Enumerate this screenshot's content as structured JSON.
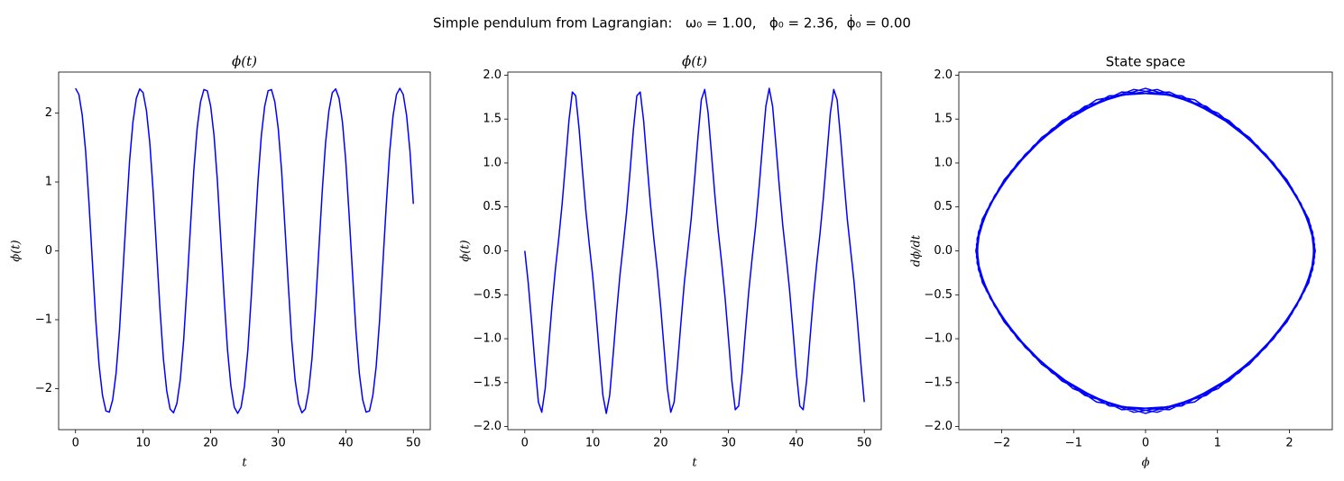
{
  "title": "Simple pendulum from Lagrangian:   ω₀ = 1.00,   ϕ₀ = 2.36,  ϕ̇₀ = 0.00",
  "chart_data": [
    {
      "type": "line",
      "title": "ϕ(t)",
      "xlabel": "t",
      "ylabel": "ϕ(t)",
      "xlim": [
        -2.5,
        52.5
      ],
      "ylim": [
        -2.596,
        2.596
      ],
      "xticks": [
        0,
        10,
        20,
        30,
        40,
        50
      ],
      "yticks": [
        {
          "value": -2,
          "label": "−2"
        },
        {
          "value": -1,
          "label": "−1"
        },
        0,
        1,
        2
      ],
      "x": [
        0,
        0.5,
        1,
        1.5,
        2,
        2.5,
        3,
        3.5,
        4,
        4.5,
        5,
        5.5,
        6,
        6.5,
        7,
        7.5,
        8,
        8.5,
        9,
        9.5,
        10,
        10.5,
        11,
        11.5,
        12,
        12.5,
        13,
        13.5,
        14,
        14.5,
        15,
        15.5,
        16,
        16.5,
        17,
        17.5,
        18,
        18.5,
        19,
        19.5,
        20,
        20.5,
        21,
        21.5,
        22,
        22.5,
        23,
        23.5,
        24,
        24.5,
        25,
        25.5,
        26,
        26.5,
        27,
        27.5,
        28,
        28.5,
        29,
        29.5,
        30,
        30.5,
        31,
        31.5,
        32,
        32.5,
        33,
        33.5,
        34,
        34.5,
        35,
        35.5,
        36,
        36.5,
        37,
        37.5,
        38,
        38.5,
        39,
        39.5,
        40,
        40.5,
        41,
        41.5,
        42,
        42.5,
        43,
        43.5,
        44,
        44.5,
        45,
        45.5,
        46,
        46.5,
        47,
        47.5,
        48,
        48.5,
        49,
        49.5,
        50
      ],
      "series": [
        {
          "color": "#0000ff",
          "values": [
            2.36,
            2.27,
            1.965,
            1.445,
            0.683,
            -0.163,
            -1.009,
            -1.675,
            -2.101,
            -2.324,
            -2.342,
            -2.162,
            -1.779,
            -1.161,
            -0.332,
            0.507,
            1.303,
            1.872,
            2.216,
            2.351,
            2.297,
            2.033,
            1.56,
            0.846,
            0,
            -0.846,
            -1.56,
            -2.033,
            -2.297,
            -2.351,
            -2.216,
            -1.872,
            -1.303,
            -0.507,
            0.332,
            1.161,
            1.779,
            2.162,
            2.342,
            2.324,
            2.101,
            1.675,
            1.009,
            0.163,
            -0.683,
            -1.445,
            -1.965,
            -2.27,
            -2.36,
            -2.27,
            -1.965,
            -1.445,
            -0.683,
            0.163,
            1.009,
            1.675,
            2.101,
            2.324,
            2.342,
            2.162,
            1.779,
            1.161,
            0.332,
            -0.507,
            -1.303,
            -1.872,
            -2.216,
            -2.351,
            -2.297,
            -2.033,
            -1.56,
            -0.846,
            0,
            0.846,
            1.56,
            2.033,
            2.297,
            2.351,
            2.216,
            1.872,
            1.303,
            0.507,
            -0.332,
            -1.161,
            -1.779,
            -2.162,
            -2.342,
            -2.324,
            -2.101,
            -1.675,
            -1.009,
            -0.163,
            0.683,
            1.445,
            1.965,
            2.27,
            2.36,
            2.27,
            1.965,
            1.445,
            0.683
          ]
        }
      ]
    },
    {
      "type": "line",
      "title": "ϕ̇(t)",
      "xlabel": "t",
      "ylabel": "ϕ(t)",
      "xlim": [
        -2.5,
        52.5
      ],
      "ylim": [
        -2.035,
        2.035
      ],
      "xticks": [
        0,
        10,
        20,
        30,
        40,
        50
      ],
      "yticks": [
        {
          "value": -2,
          "label": "−2.0"
        },
        {
          "value": -1.5,
          "label": "−1.5"
        },
        {
          "value": -1,
          "label": "−1.0"
        },
        {
          "value": -0.5,
          "label": "−0.5"
        },
        {
          "value": 0,
          "label": "0.0"
        },
        0.5,
        {
          "value": 1,
          "label": "1.0"
        },
        1.5,
        {
          "value": 2,
          "label": "2.0"
        }
      ],
      "x": [
        0,
        0.5,
        1,
        1.5,
        2,
        2.5,
        3,
        3.5,
        4,
        4.5,
        5,
        5.5,
        6,
        6.5,
        7,
        7.5,
        8,
        8.5,
        9,
        9.5,
        10,
        10.5,
        11,
        11.5,
        12,
        12.5,
        13,
        13.5,
        14,
        14.5,
        15,
        15.5,
        16,
        16.5,
        17,
        17.5,
        18,
        18.5,
        19,
        19.5,
        20,
        20.5,
        21,
        21.5,
        22,
        22.5,
        23,
        23.5,
        24,
        24.5,
        25,
        25.5,
        26,
        26.5,
        27,
        27.5,
        28,
        28.5,
        29,
        29.5,
        30,
        30.5,
        31,
        31.5,
        32,
        32.5,
        33,
        33.5,
        34,
        34.5,
        35,
        35.5,
        36,
        36.5,
        37,
        37.5,
        38,
        38.5,
        39,
        39.5,
        40,
        40.5,
        41,
        41.5,
        42,
        42.5,
        43,
        43.5,
        44,
        44.5,
        45,
        45.5,
        46,
        46.5,
        47,
        47.5,
        48,
        48.5,
        49,
        49.5,
        50
      ],
      "series": [
        {
          "color": "#0000ff",
          "values": [
            0,
            -0.36,
            -0.81,
            -1.29,
            -1.72,
            -1.837,
            -1.568,
            -1.098,
            -0.626,
            -0.213,
            0.141,
            0.536,
            1.002,
            1.482,
            1.808,
            1.764,
            1.386,
            0.906,
            0.448,
            0.07,
            -0.286,
            -0.718,
            -1.194,
            -1.644,
            -1.85,
            -1.644,
            -1.194,
            -0.718,
            -0.286,
            0.07,
            0.448,
            0.906,
            1.386,
            1.764,
            1.808,
            1.482,
            1.002,
            0.536,
            0.141,
            -0.213,
            -0.626,
            -1.098,
            -1.568,
            -1.837,
            -1.72,
            -1.29,
            -0.81,
            -0.36,
            0,
            0.36,
            0.81,
            1.29,
            1.72,
            1.837,
            1.568,
            1.098,
            0.626,
            0.213,
            -0.141,
            -0.536,
            -1.002,
            -1.482,
            -1.808,
            -1.764,
            -1.386,
            -0.906,
            -0.448,
            -0.07,
            0.286,
            0.718,
            1.194,
            1.644,
            1.85,
            1.644,
            1.194,
            0.718,
            0.286,
            -0.07,
            -0.448,
            -0.906,
            -1.386,
            -1.764,
            -1.808,
            -1.482,
            -1.002,
            -0.536,
            -0.141,
            0.213,
            0.626,
            1.098,
            1.568,
            1.837,
            1.72,
            1.29,
            0.81,
            0.36,
            0,
            -0.36,
            -0.81,
            -1.29,
            -1.72
          ]
        }
      ]
    },
    {
      "type": "line",
      "title": "State space",
      "xlabel": "ϕ",
      "ylabel": "dϕ/dt",
      "xlim": [
        -2.596,
        2.596
      ],
      "ylim": [
        -2.035,
        2.035
      ],
      "xticks": [
        {
          "value": -2,
          "label": "−2"
        },
        {
          "value": -1,
          "label": "−1"
        },
        0,
        1,
        2
      ],
      "yticks": [
        {
          "value": -2,
          "label": "−2.0"
        },
        {
          "value": -1.5,
          "label": "−1.5"
        },
        {
          "value": -1,
          "label": "−1.0"
        },
        {
          "value": -0.5,
          "label": "−0.5"
        },
        {
          "value": 0,
          "label": "0.0"
        },
        0.5,
        {
          "value": 1,
          "label": "1.0"
        },
        1.5,
        {
          "value": 2,
          "label": "2.0"
        }
      ],
      "x": [
        2.36,
        2.27,
        1.965,
        1.445,
        0.683,
        -0.163,
        -1.009,
        -1.675,
        -2.101,
        -2.324,
        -2.342,
        -2.162,
        -1.779,
        -1.161,
        -0.332,
        0.507,
        1.303,
        1.872,
        2.216,
        2.351,
        2.297,
        2.033,
        1.56,
        0.846,
        0,
        -0.846,
        -1.56,
        -2.033,
        -2.297,
        -2.351,
        -2.216,
        -1.872,
        -1.303,
        -0.507,
        0.332,
        1.161,
        1.779,
        2.162,
        2.342,
        2.324,
        2.101,
        1.675,
        1.009,
        0.163,
        -0.683,
        -1.445,
        -1.965,
        -2.27,
        -2.36,
        -2.27,
        -1.965,
        -1.445,
        -0.683,
        0.163,
        1.009,
        1.675,
        2.101,
        2.324,
        2.342,
        2.162,
        1.779,
        1.161,
        0.332,
        -0.507,
        -1.303,
        -1.872,
        -2.216,
        -2.351,
        -2.297,
        -2.033,
        -1.56,
        -0.846,
        0,
        0.846,
        1.56,
        2.033,
        2.297,
        2.351,
        2.216,
        1.872,
        1.303,
        0.507,
        -0.332,
        -1.161,
        -1.779,
        -2.162,
        -2.342,
        -2.324,
        -2.101,
        -1.675,
        -1.009,
        -0.163,
        0.683,
        1.445,
        1.965,
        2.27,
        2.36,
        2.27,
        1.965,
        1.445,
        0.683
      ],
      "series": [
        {
          "color": "#0000ff",
          "values": [
            0,
            -0.36,
            -0.81,
            -1.29,
            -1.72,
            -1.837,
            -1.568,
            -1.098,
            -0.626,
            -0.213,
            0.141,
            0.536,
            1.002,
            1.482,
            1.808,
            1.764,
            1.386,
            0.906,
            0.448,
            0.07,
            -0.286,
            -0.718,
            -1.194,
            -1.644,
            -1.85,
            -1.644,
            -1.194,
            -0.718,
            -0.286,
            0.07,
            0.448,
            0.906,
            1.386,
            1.764,
            1.808,
            1.482,
            1.002,
            0.536,
            0.141,
            -0.213,
            -0.626,
            -1.098,
            -1.568,
            -1.837,
            -1.72,
            -1.29,
            -0.81,
            -0.36,
            0,
            0.36,
            0.81,
            1.29,
            1.72,
            1.837,
            1.568,
            1.098,
            0.626,
            0.213,
            -0.141,
            -0.536,
            -1.002,
            -1.482,
            -1.808,
            -1.764,
            -1.386,
            -0.906,
            -0.448,
            -0.07,
            0.286,
            0.718,
            1.194,
            1.644,
            1.85,
            1.644,
            1.194,
            0.718,
            0.286,
            -0.07,
            -0.448,
            -0.906,
            -1.386,
            -1.764,
            -1.808,
            -1.482,
            -1.002,
            -0.536,
            -0.141,
            0.213,
            0.626,
            1.098,
            1.568,
            1.837,
            1.72,
            1.29,
            0.81,
            0.36,
            0,
            -0.36,
            -0.81,
            -1.29,
            -1.72
          ]
        }
      ]
    }
  ]
}
